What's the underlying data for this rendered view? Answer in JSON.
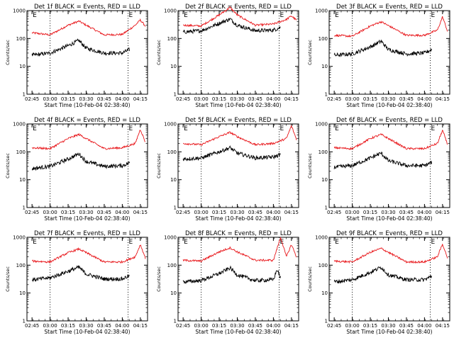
{
  "chart_data": [
    {
      "type": "line",
      "title": "Det 1f BLACK = Events, RED = LLD",
      "xlabel": "Start Time (10-Feb-04 02:38:40)",
      "ylabel": "Counts/sec",
      "x_ticks": [
        "02:45",
        "03:00",
        "03:15",
        "03:30",
        "03:45",
        "04:00",
        "04:15"
      ],
      "y_ticks": [
        "1",
        "10",
        "100",
        "1000"
      ],
      "ylim": [
        1,
        1000
      ],
      "y_scale": "log",
      "series": [
        {
          "name": "RED = LLD",
          "color": "#e8161a",
          "x": [
            2.75,
            3.0,
            3.25,
            3.4,
            3.5,
            3.75,
            4.0,
            4.18,
            4.25,
            4.32
          ],
          "y": [
            160,
            135,
            300,
            420,
            300,
            135,
            140,
            300,
            460,
            280
          ]
        },
        {
          "name": "BLACK = Events",
          "color": "#000000",
          "x": [
            2.75,
            3.0,
            3.25,
            3.4,
            3.5,
            3.75,
            4.0,
            4.1
          ],
          "y": [
            25,
            30,
            55,
            85,
            45,
            30,
            30,
            40
          ]
        }
      ],
      "markers": {
        "label": "E",
        "x": [
          2.75,
          4.08
        ]
      },
      "dotted_x": [
        3.0,
        4.08
      ]
    },
    {
      "type": "line",
      "title": "Det 2f BLACK = Events, RED = LLD",
      "xlabel": "Start Time (10-Feb-04 02:38:40)",
      "ylabel": "Counts/sec",
      "x_ticks": [
        "02:45",
        "03:00",
        "03:15",
        "03:30",
        "03:45",
        "04:00",
        "04:15"
      ],
      "y_ticks": [
        "1",
        "10",
        "100",
        "1000"
      ],
      "ylim": [
        1,
        1000
      ],
      "y_scale": "log",
      "series": [
        {
          "name": "RED = LLD",
          "color": "#e8161a",
          "x": [
            2.75,
            3.0,
            3.25,
            3.4,
            3.5,
            3.75,
            4.0,
            4.18,
            4.25,
            4.32
          ],
          "y": [
            300,
            280,
            700,
            1300,
            700,
            300,
            330,
            480,
            650,
            450
          ]
        },
        {
          "name": "BLACK = Events",
          "color": "#000000",
          "x": [
            2.75,
            3.0,
            3.25,
            3.4,
            3.5,
            3.75,
            4.0,
            4.1
          ],
          "y": [
            170,
            190,
            350,
            500,
            300,
            190,
            200,
            250
          ]
        }
      ],
      "markers": {
        "label": "E",
        "x": [
          2.75,
          4.08
        ]
      },
      "dotted_x": [
        3.0,
        4.08
      ]
    },
    {
      "type": "line",
      "title": "Det 3f BLACK = Events, RED = LLD",
      "xlabel": "Start Time (10-Feb-04 02:38:40)",
      "ylabel": "Counts/sec",
      "x_ticks": [
        "02:45",
        "03:00",
        "03:15",
        "03:30",
        "03:45",
        "04:00",
        "04:15"
      ],
      "y_ticks": [
        "1",
        "10",
        "100",
        "1000"
      ],
      "ylim": [
        1,
        1000
      ],
      "y_scale": "log",
      "series": [
        {
          "name": "RED = LLD",
          "color": "#e8161a",
          "x": [
            2.75,
            3.0,
            3.25,
            3.4,
            3.5,
            3.75,
            4.0,
            4.18,
            4.25,
            4.32
          ],
          "y": [
            130,
            120,
            280,
            400,
            290,
            130,
            130,
            200,
            600,
            180
          ]
        },
        {
          "name": "BLACK = Events",
          "color": "#000000",
          "x": [
            2.75,
            3.0,
            3.25,
            3.4,
            3.5,
            3.75,
            4.0,
            4.1
          ],
          "y": [
            25,
            28,
            50,
            80,
            40,
            28,
            30,
            40
          ]
        }
      ],
      "markers": {
        "label": "E",
        "x": [
          2.75,
          4.08
        ]
      },
      "dotted_x": [
        3.0,
        4.08
      ]
    },
    {
      "type": "line",
      "title": "Det 4f BLACK = Events, RED = LLD",
      "xlabel": "Start Time (10-Feb-04 02:38:40)",
      "ylabel": "Counts/sec",
      "x_ticks": [
        "02:45",
        "03:00",
        "03:15",
        "03:30",
        "03:45",
        "04:00",
        "04:15"
      ],
      "y_ticks": [
        "1",
        "10",
        "100",
        "1000"
      ],
      "ylim": [
        1,
        1000
      ],
      "y_scale": "log",
      "series": [
        {
          "name": "RED = LLD",
          "color": "#e8161a",
          "x": [
            2.75,
            3.0,
            3.25,
            3.4,
            3.5,
            3.75,
            4.0,
            4.18,
            4.25,
            4.32
          ],
          "y": [
            140,
            130,
            300,
            420,
            300,
            130,
            140,
            200,
            650,
            220
          ]
        },
        {
          "name": "BLACK = Events",
          "color": "#000000",
          "x": [
            2.75,
            3.0,
            3.25,
            3.4,
            3.5,
            3.75,
            4.0,
            4.1
          ],
          "y": [
            25,
            30,
            55,
            85,
            45,
            30,
            32,
            40
          ]
        }
      ],
      "markers": {
        "label": "E",
        "x": [
          2.75,
          4.08
        ]
      },
      "dotted_x": [
        3.0,
        4.08
      ]
    },
    {
      "type": "line",
      "title": "Det 5f BLACK = Events, RED = LLD",
      "xlabel": "Start Time (10-Feb-04 02:38:40)",
      "ylabel": "Counts/sec",
      "x_ticks": [
        "02:45",
        "03:00",
        "03:15",
        "03:30",
        "03:45",
        "04:00",
        "04:15"
      ],
      "y_ticks": [
        "1",
        "10",
        "100",
        "1000"
      ],
      "ylim": [
        1,
        1000
      ],
      "y_scale": "log",
      "series": [
        {
          "name": "RED = LLD",
          "color": "#e8161a",
          "x": [
            2.75,
            3.0,
            3.25,
            3.4,
            3.5,
            3.75,
            4.0,
            4.18,
            4.25,
            4.32
          ],
          "y": [
            200,
            180,
            350,
            500,
            350,
            180,
            200,
            300,
            850,
            280
          ]
        },
        {
          "name": "BLACK = Events",
          "color": "#000000",
          "x": [
            2.75,
            3.0,
            3.25,
            3.4,
            3.5,
            3.75,
            4.0,
            4.1
          ],
          "y": [
            55,
            60,
            100,
            140,
            90,
            60,
            65,
            80
          ]
        }
      ],
      "markers": {
        "label": "E",
        "x": [
          2.75,
          4.08
        ]
      },
      "dotted_x": [
        3.0,
        4.08
      ]
    },
    {
      "type": "line",
      "title": "Det 6f BLACK = Events, RED = LLD",
      "xlabel": "Start Time (10-Feb-04 02:38:40)",
      "ylabel": "Counts/sec",
      "x_ticks": [
        "02:45",
        "03:00",
        "03:15",
        "03:30",
        "03:45",
        "04:00",
        "04:15"
      ],
      "y_ticks": [
        "1",
        "10",
        "100",
        "1000"
      ],
      "ylim": [
        1,
        1000
      ],
      "y_scale": "log",
      "series": [
        {
          "name": "RED = LLD",
          "color": "#e8161a",
          "x": [
            2.75,
            3.0,
            3.25,
            3.4,
            3.5,
            3.75,
            4.0,
            4.18,
            4.25,
            4.32
          ],
          "y": [
            140,
            130,
            300,
            420,
            300,
            130,
            130,
            200,
            600,
            180
          ]
        },
        {
          "name": "BLACK = Events",
          "color": "#000000",
          "x": [
            2.75,
            3.0,
            3.25,
            3.4,
            3.5,
            3.75,
            4.0,
            4.1
          ],
          "y": [
            28,
            32,
            60,
            90,
            48,
            32,
            32,
            42
          ]
        }
      ],
      "markers": {
        "label": "E",
        "x": [
          2.75,
          4.08
        ]
      },
      "dotted_x": [
        3.0,
        4.08
      ]
    },
    {
      "type": "line",
      "title": "Det 7f BLACK = Events, RED = LLD",
      "xlabel": "Start Time (10-Feb-04 02:38:40)",
      "ylabel": "Counts/sec",
      "x_ticks": [
        "02:45",
        "03:00",
        "03:15",
        "03:30",
        "03:45",
        "04:00",
        "04:15"
      ],
      "y_ticks": [
        "1",
        "10",
        "100",
        "1000"
      ],
      "ylim": [
        1,
        1000
      ],
      "y_scale": "log",
      "series": [
        {
          "name": "RED = LLD",
          "color": "#e8161a",
          "x": [
            2.75,
            3.0,
            3.25,
            3.4,
            3.5,
            3.75,
            4.0,
            4.18,
            4.25,
            4.32
          ],
          "y": [
            140,
            130,
            280,
            380,
            280,
            130,
            130,
            200,
            550,
            180
          ]
        },
        {
          "name": "BLACK = Events",
          "color": "#000000",
          "x": [
            2.75,
            3.0,
            3.25,
            3.4,
            3.5,
            3.75,
            4.0,
            4.1
          ],
          "y": [
            30,
            35,
            60,
            85,
            48,
            32,
            32,
            42
          ]
        }
      ],
      "markers": {
        "label": "E",
        "x": [
          2.75,
          4.08
        ]
      },
      "dotted_x": [
        3.0,
        4.08
      ]
    },
    {
      "type": "line",
      "title": "Det 8f BLACK = Events, RED = LLD",
      "xlabel": "Start Time (10-Feb-04 02:38:40)",
      "ylabel": "Counts/sec",
      "x_ticks": [
        "02:45",
        "03:00",
        "03:15",
        "03:30",
        "03:45",
        "04:00",
        "04:15"
      ],
      "y_ticks": [
        "1",
        "10",
        "100",
        "1000"
      ],
      "ylim": [
        1,
        1000
      ],
      "y_scale": "log",
      "series": [
        {
          "name": "RED = LLD",
          "color": "#e8161a",
          "x": [
            2.75,
            3.0,
            3.25,
            3.4,
            3.5,
            3.75,
            4.0,
            4.1,
            4.18,
            4.25,
            4.32
          ],
          "y": [
            150,
            140,
            300,
            420,
            300,
            150,
            150,
            1000,
            200,
            550,
            200
          ]
        },
        {
          "name": "BLACK = Events",
          "color": "#000000",
          "x": [
            2.75,
            3.0,
            3.25,
            3.4,
            3.5,
            3.75,
            4.0,
            4.05,
            4.1
          ],
          "y": [
            25,
            28,
            50,
            80,
            45,
            28,
            30,
            70,
            35
          ]
        }
      ],
      "markers": {
        "label": "E",
        "x": [
          2.75,
          4.08
        ]
      },
      "dotted_x": [
        3.0,
        4.08
      ]
    },
    {
      "type": "line",
      "title": "Det 9f BLACK = Events, RED = LLD",
      "xlabel": "Start Time (10-Feb-04 02:38:40)",
      "ylabel": "Counts/sec",
      "x_ticks": [
        "02:45",
        "03:00",
        "03:15",
        "03:30",
        "03:45",
        "04:00",
        "04:15"
      ],
      "y_ticks": [
        "1",
        "10",
        "100",
        "1000"
      ],
      "ylim": [
        1,
        1000
      ],
      "y_scale": "log",
      "series": [
        {
          "name": "RED = LLD",
          "color": "#e8161a",
          "x": [
            2.75,
            3.0,
            3.25,
            3.4,
            3.5,
            3.75,
            4.0,
            4.18,
            4.25,
            4.32
          ],
          "y": [
            140,
            130,
            290,
            400,
            290,
            130,
            130,
            200,
            580,
            180
          ]
        },
        {
          "name": "BLACK = Events",
          "color": "#000000",
          "x": [
            2.75,
            3.0,
            3.25,
            3.4,
            3.5,
            3.75,
            4.0,
            4.1
          ],
          "y": [
            25,
            30,
            55,
            85,
            45,
            30,
            30,
            40
          ]
        }
      ],
      "markers": {
        "label": "E",
        "x": [
          2.75,
          4.08
        ]
      },
      "dotted_x": [
        3.0,
        4.08
      ]
    }
  ]
}
